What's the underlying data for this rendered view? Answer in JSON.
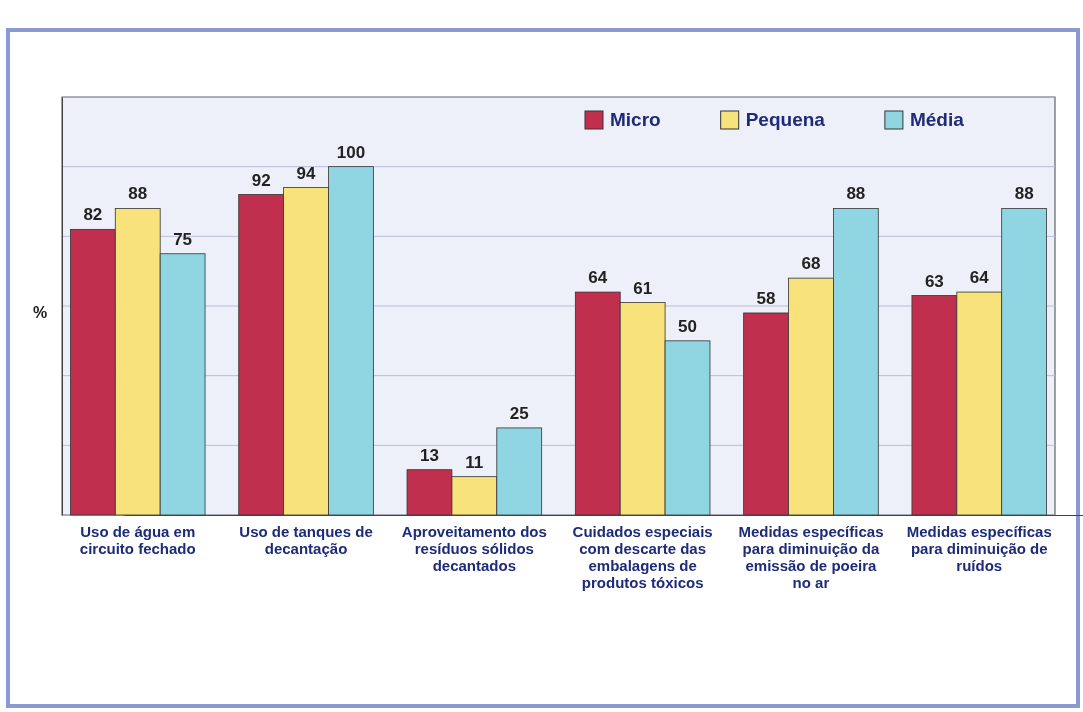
{
  "chart_data": {
    "type": "bar",
    "ylabel": "%",
    "categories": [
      "Uso de água em circuito fechado",
      "Uso de tanques de decantação",
      "Aproveitamento dos resíduos sólidos decantados",
      "Cuidados especiais com descarte das embalagens de produtos tóxicos",
      "Medidas específicas para diminuição da emissão de poeira no ar",
      "Medidas específicas para diminuição de ruídos"
    ],
    "series": [
      {
        "name": "Micro",
        "color": "#c0304e",
        "values": [
          82,
          92,
          13,
          64,
          58,
          63
        ]
      },
      {
        "name": "Pequena",
        "color": "#f7e27c",
        "values": [
          88,
          94,
          11,
          61,
          68,
          64
        ]
      },
      {
        "name": "Média",
        "color": "#8fd6e2",
        "values": [
          75,
          100,
          25,
          50,
          88,
          88
        ]
      }
    ],
    "ylim": [
      0,
      120
    ],
    "yticks": [
      {
        "value": 0,
        "label": null
      },
      {
        "value": 20,
        "label": null
      },
      {
        "value": 40,
        "label": null
      },
      {
        "value": 60,
        "label": null
      },
      {
        "value": 80,
        "label": null
      },
      {
        "value": 100,
        "label": null
      },
      {
        "value": 120,
        "label": null
      }
    ],
    "tick_labels": "x",
    "grid": "y",
    "legend": "top right",
    "data_labels": true
  }
}
